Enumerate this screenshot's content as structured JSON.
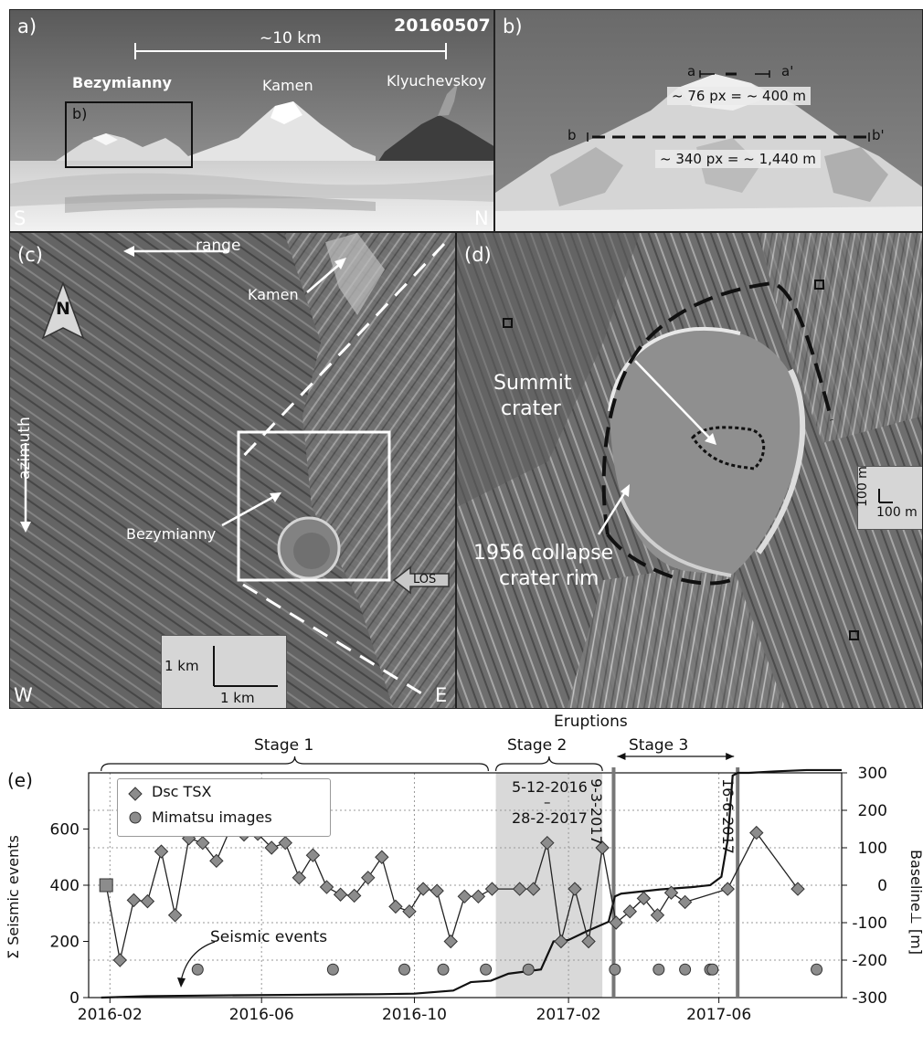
{
  "panel_a": {
    "label": "a)",
    "date": "20160507",
    "scale": "~10 km",
    "volcanoes": [
      "Bezymianny",
      "Kamen",
      "Klyuchevskoy"
    ],
    "inset_label": "b)",
    "left_dir": "S",
    "right_dir": "N"
  },
  "panel_b": {
    "label": "b)",
    "a_left": "a",
    "a_right": "a'",
    "a_measure": "~ 76 px = ~ 400 m",
    "b_left": "b",
    "b_right": "b'",
    "b_measure": "~ 340 px = ~ 1,440 m"
  },
  "panel_c": {
    "label": "(c)",
    "range": "range",
    "azimuth": "azimuth",
    "north": "N",
    "kamen": "Kamen",
    "bezymianny": "Bezymianny",
    "los": "LOS",
    "scale_v": "1 km",
    "scale_h": "1 km",
    "left_dir": "W",
    "right_dir": "E"
  },
  "panel_d": {
    "label": "(d)",
    "summit_l1": "Summit",
    "summit_l2": "crater",
    "rim_l1": "1956 collapse",
    "rim_l2": "crater rim",
    "scale_v": "100 m",
    "scale_h": "100 m"
  },
  "panel_e": {
    "label": "(e)",
    "eruptions_title": "Eruptions",
    "stages": [
      "Stage 1",
      "Stage 2",
      "Stage 3"
    ],
    "stage2_l1": "5-12-2016",
    "stage2_l2": "–",
    "stage2_l3": "28-2-2017",
    "eruption_dates": [
      "9-3-2017",
      "16-6-2017"
    ],
    "seismic_label": "Seismic events",
    "legend": [
      "Dsc TSX",
      "Mimatsu images"
    ]
  },
  "chart_data": {
    "type": "line",
    "ylabel_left": "Σ Seismic events",
    "ylabel_right": "Baseline⊥ [m]",
    "xticks": [
      "2016-02",
      "2016-06",
      "2016-10",
      "2017-02",
      "2017-06"
    ],
    "yticks_left": [
      0,
      200,
      400,
      600
    ],
    "yticks_right": [
      -300,
      -200,
      -100,
      0,
      100,
      200,
      300
    ],
    "ylim_left": [
      0,
      800
    ],
    "ylim_right": [
      -300,
      300
    ],
    "grid": true,
    "series": [
      {
        "name": "Dsc TSX",
        "marker": "diamond",
        "x": [
          "2016-01-29",
          "2016-02-09",
          "2016-02-20",
          "2016-03-02",
          "2016-03-13",
          "2016-03-24",
          "2016-04-04",
          "2016-04-15",
          "2016-04-26",
          "2016-05-07",
          "2016-05-18",
          "2016-05-29",
          "2016-06-09",
          "2016-06-20",
          "2016-07-01",
          "2016-07-12",
          "2016-07-23",
          "2016-08-03",
          "2016-08-14",
          "2016-08-25",
          "2016-09-05",
          "2016-09-16",
          "2016-09-27",
          "2016-10-08",
          "2016-10-19",
          "2016-10-30",
          "2016-11-10",
          "2016-11-21",
          "2016-12-02",
          "2016-12-24",
          "2017-01-04",
          "2017-01-15",
          "2017-01-26",
          "2017-02-06",
          "2017-02-17",
          "2017-02-28",
          "2017-03-11",
          "2017-03-22",
          "2017-04-02",
          "2017-04-13",
          "2017-04-24",
          "2017-05-05",
          "2017-06-08",
          "2017-07-01",
          "2017-08-03"
        ],
        "y": [
          0,
          -200,
          -40,
          -43,
          90,
          -80,
          125,
          113,
          65,
          150,
          135,
          137,
          100,
          113,
          20,
          80,
          -5,
          -25,
          -28,
          20,
          75,
          -57,
          -70,
          -10,
          -15,
          -150,
          -30,
          -30,
          -10,
          -10,
          -10,
          113,
          -150,
          -10,
          -150,
          100,
          -100,
          -70,
          -35,
          -80,
          -20,
          -45,
          -10,
          140,
          -10
        ]
      },
      {
        "name": "Mimatsu images",
        "marker": "circle",
        "y_value": -225,
        "x": [
          "2016-04-11",
          "2016-07-28",
          "2016-09-23",
          "2016-10-24",
          "2016-11-27",
          "2016-12-31",
          "2017-03-10",
          "2017-04-14",
          "2017-05-05",
          "2017-05-25",
          "2017-05-27",
          "2017-08-18"
        ]
      },
      {
        "name": "Seismic events",
        "axis": "left",
        "x": [
          "2016-01-25",
          "2016-03-01",
          "2016-05-01",
          "2016-07-01",
          "2016-09-01",
          "2016-10-01",
          "2016-11-01",
          "2016-11-15",
          "2016-12-01",
          "2016-12-15",
          "2017-01-10",
          "2017-01-20",
          "2017-02-01",
          "2017-02-15",
          "2017-03-05",
          "2017-03-10",
          "2017-03-15",
          "2017-04-15",
          "2017-05-10",
          "2017-05-25",
          "2017-06-03",
          "2017-06-08",
          "2017-06-12",
          "2017-06-16",
          "2017-06-25",
          "2017-07-15",
          "2017-08-10",
          "2017-09-07"
        ],
        "y": [
          0,
          5,
          8,
          10,
          12,
          14,
          25,
          55,
          60,
          85,
          100,
          200,
          205,
          235,
          270,
          360,
          370,
          385,
          393,
          400,
          430,
          560,
          790,
          800,
          800,
          805,
          810,
          810
        ]
      }
    ]
  }
}
